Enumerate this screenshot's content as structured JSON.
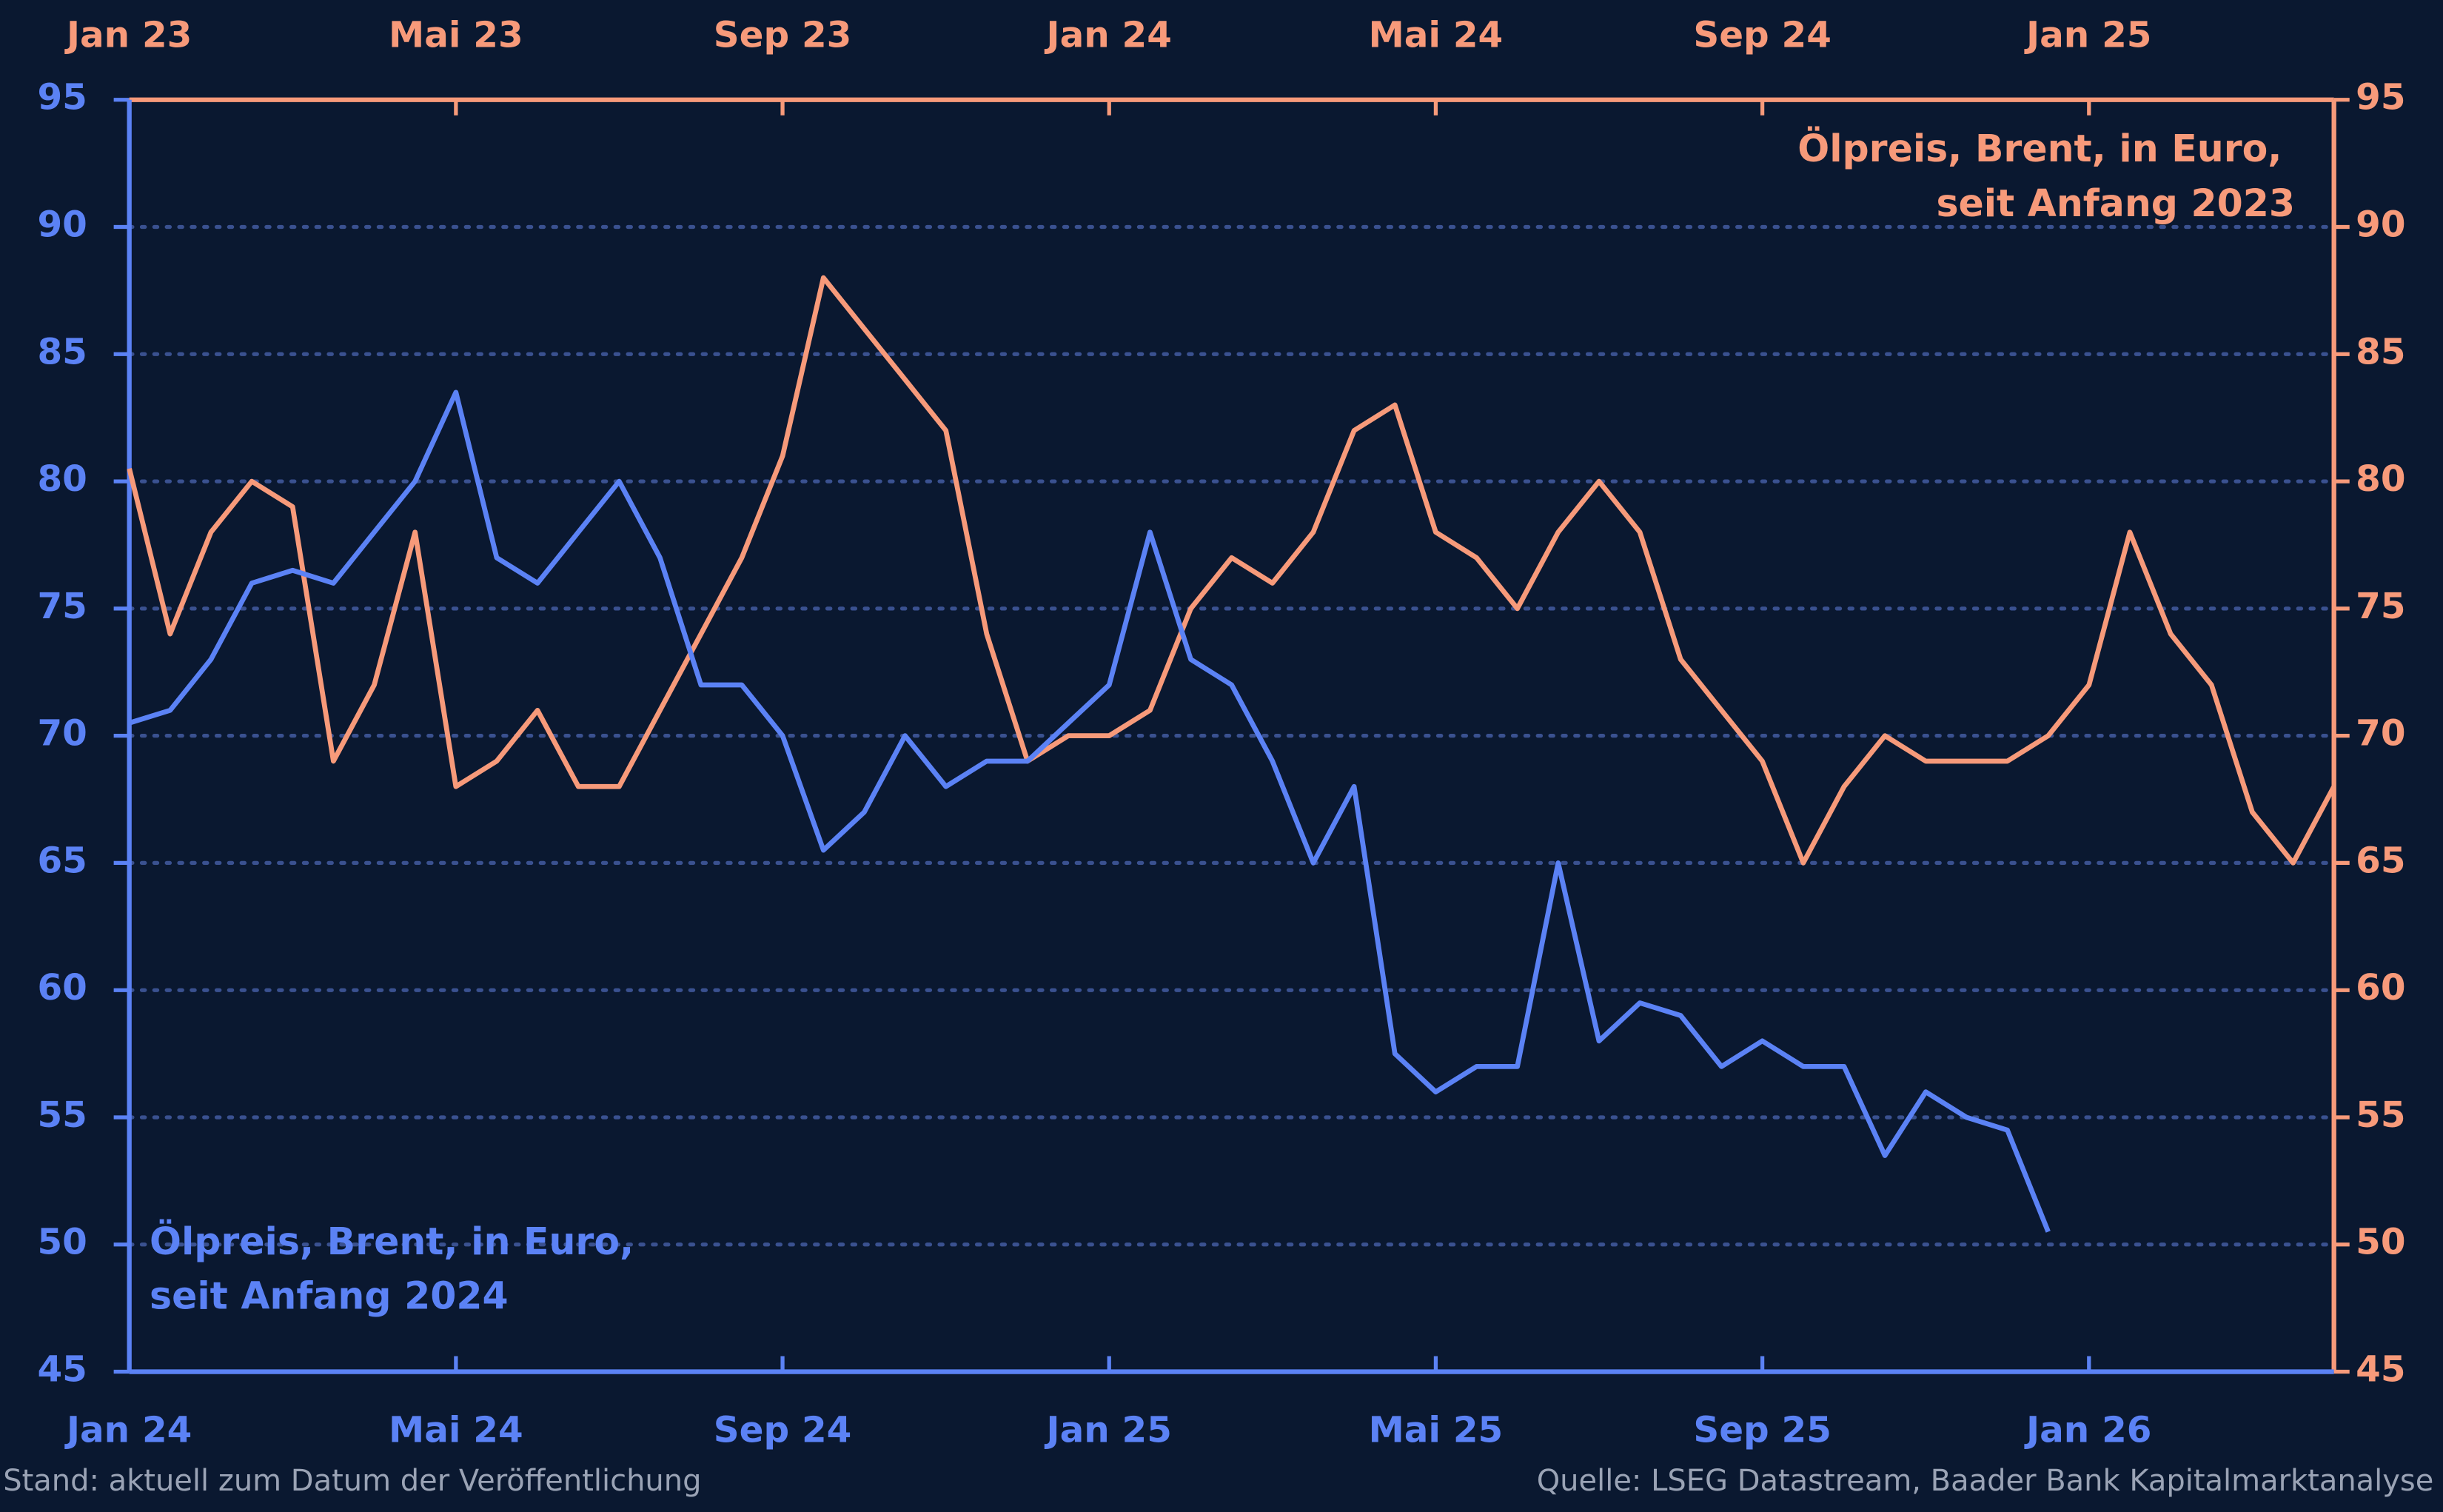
{
  "chart_data": {
    "type": "line",
    "xlim": [
      0,
      27
    ],
    "xticks": [
      {
        "value": 0,
        "label": "Jan 24"
      },
      {
        "value": 4,
        "label": "Mai 24"
      },
      {
        "value": 8,
        "label": "Sep 24"
      },
      {
        "value": 12,
        "label": "Jan 25"
      },
      {
        "value": 16,
        "label": "Mai 25"
      },
      {
        "value": 20,
        "label": "Sep 25"
      },
      {
        "value": 24,
        "label": "Jan 26"
      }
    ],
    "x2lim": [
      0,
      27
    ],
    "x2ticks": [
      {
        "value": 0,
        "label": "Jan 23"
      },
      {
        "value": 4,
        "label": "Mai 23"
      },
      {
        "value": 8,
        "label": "Sep 23"
      },
      {
        "value": 12,
        "label": "Jan 24"
      },
      {
        "value": 16,
        "label": "Mai 24"
      },
      {
        "value": 20,
        "label": "Sep 24"
      },
      {
        "value": 24,
        "label": "Jan 25"
      }
    ],
    "ylim": [
      45,
      95
    ],
    "yticks": [
      45,
      50,
      55,
      60,
      65,
      70,
      75,
      80,
      85,
      90,
      95
    ],
    "y2lim": [
      45,
      95
    ],
    "y2ticks": [
      45,
      50,
      55,
      60,
      65,
      70,
      75,
      80,
      85,
      90,
      95
    ],
    "grid": true,
    "series": [
      {
        "name": "Ölpreis, Brent, in Euro, seit Anfang 2023",
        "color": "#f79a7a",
        "axis": "y2",
        "x": [
          0,
          0.5,
          1,
          1.5,
          2,
          2.5,
          3,
          3.5,
          4,
          4.5,
          5,
          5.5,
          6,
          6.5,
          7,
          7.5,
          8,
          8.5,
          9,
          9.5,
          10,
          10.5,
          11,
          11.5,
          12,
          12.5,
          13,
          13.5,
          14,
          14.5,
          15,
          15.5,
          16,
          16.5,
          17,
          17.5,
          18,
          18.5,
          19,
          19.5,
          20,
          20.5,
          21,
          21.5,
          22,
          22.5,
          23,
          23.5,
          24,
          24.5,
          25,
          25.5,
          26,
          26.5,
          27
        ],
        "values": [
          80.5,
          74,
          78,
          80,
          79,
          69,
          72,
          78,
          68,
          69,
          71,
          68,
          68,
          71,
          74,
          77,
          81,
          88,
          86,
          84,
          82,
          74,
          69,
          70,
          70,
          71,
          75,
          77,
          76,
          78,
          82,
          83,
          78,
          77,
          75,
          78,
          80,
          78,
          73,
          71,
          69,
          65,
          68,
          70,
          69,
          69,
          69,
          70,
          72,
          78,
          74,
          72,
          67,
          65,
          68
        ]
      },
      {
        "name": "Ölpreis, Brent, in Euro, seit Anfang 2024",
        "color": "#5b82f5",
        "axis": "y",
        "x": [
          0,
          0.5,
          1,
          1.5,
          2,
          2.5,
          3,
          3.5,
          4,
          4.5,
          5,
          5.5,
          6,
          6.5,
          7,
          7.5,
          8,
          8.5,
          9,
          9.5,
          10,
          10.5,
          11,
          11.5,
          12,
          12.5,
          13,
          13.5,
          14,
          14.5,
          15,
          15.5,
          16,
          16.5,
          17,
          17.5,
          18,
          18.5,
          19,
          19.5,
          20,
          20.5,
          21,
          21.5,
          22,
          22.5,
          23,
          23.5
        ],
        "values": [
          70.5,
          71,
          73,
          76,
          76.5,
          76,
          78,
          80,
          83.5,
          77,
          76,
          78,
          80,
          77,
          72,
          72,
          70,
          65.5,
          67,
          70,
          68,
          69,
          69,
          70.5,
          72,
          78,
          73,
          72,
          69,
          65,
          68,
          57.5,
          56,
          57,
          57,
          65,
          58,
          59.5,
          59,
          57,
          58,
          57,
          57,
          53.5,
          56,
          55,
          54.5,
          50.5
        ]
      }
    ],
    "footer_left": "Stand: aktuell zum Datum der Veröffentlichung",
    "footer_right": "Quelle: LSEG Datastream, Baader Bank Kapitalmarktanalyse"
  }
}
